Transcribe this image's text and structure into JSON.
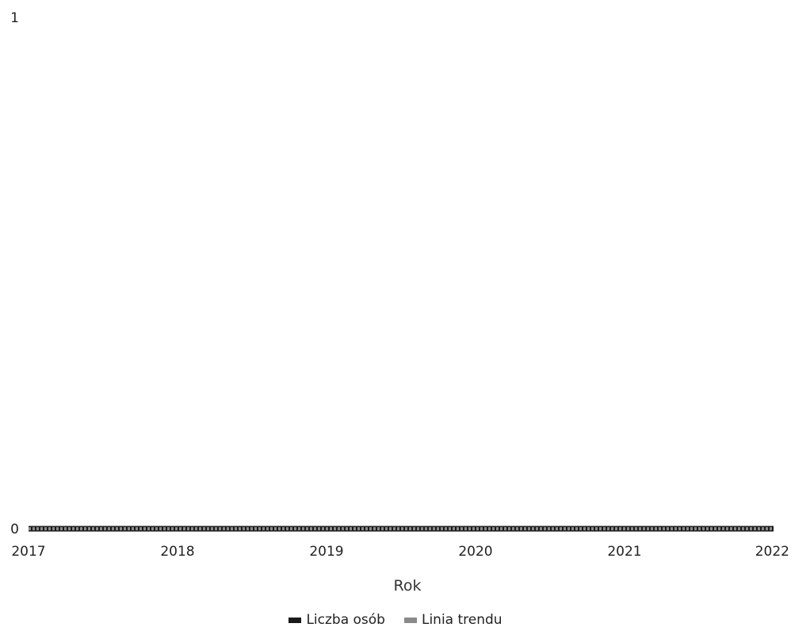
{
  "chart_data": {
    "type": "line",
    "x": [
      2017,
      2018,
      2019,
      2020,
      2021,
      2022
    ],
    "series": [
      {
        "name": "Liczba osób",
        "values": [
          0,
          0,
          0,
          0,
          0,
          0
        ],
        "color": "#1a1a1a"
      },
      {
        "name": "Linia trendu",
        "values": [
          0,
          0,
          0,
          0,
          0,
          0
        ],
        "color": "#8a8a8a"
      }
    ],
    "xlabel": "Rok",
    "ylabel": "",
    "xlim": [
      2017,
      2022
    ],
    "ylim": [
      0,
      1
    ],
    "y_ticks": [
      0,
      1
    ],
    "grid": false,
    "legend_placement": "bottom-center"
  }
}
